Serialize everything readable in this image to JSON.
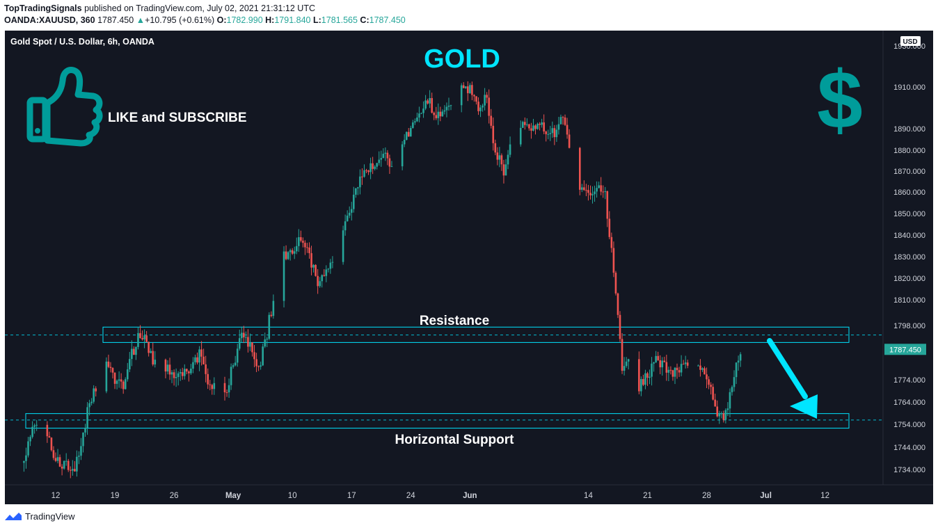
{
  "header": {
    "author": "TopTradingSignals",
    "published": "published on TradingView.com, July 02, 2021 21:31:12 UTC",
    "symbol": "OANDA:XAUUSD, 360",
    "last": "1787.450",
    "change": "+10.795 (+0.61%)",
    "o_label": "O:",
    "o": "1782.990",
    "h_label": "H:",
    "h": "1791.840",
    "l_label": "L:",
    "l": "1781.565",
    "c_label": "C:",
    "c": "1787.450"
  },
  "footer": {
    "brand": "TradingView"
  },
  "colors": {
    "up": "#26a69a",
    "down": "#ef5350",
    "zone": "#00e5ff",
    "bg": "#131722",
    "accent": "#009c9a"
  },
  "chart_data": {
    "type": "candlestick",
    "title": "Gold Spot / U.S. Dollar, 6h, OANDA",
    "currency": "USD",
    "ylim": [
      1728,
      1936
    ],
    "y_ticks": [
      "1930.000",
      "1910.000",
      "1890.000",
      "1880.000",
      "1870.000",
      "1860.000",
      "1850.000",
      "1840.000",
      "1830.000",
      "1820.000",
      "1810.000",
      "1798.000",
      "1774.000",
      "1764.000",
      "1754.000",
      "1744.000",
      "1734.000"
    ],
    "y_tick_values": [
      1930,
      1910,
      1890,
      1880,
      1870,
      1860,
      1850,
      1840,
      1830,
      1820,
      1810,
      1798,
      1774,
      1764,
      1754,
      1744,
      1734
    ],
    "x_ticks": [
      "12",
      "19",
      "26",
      "May",
      "10",
      "17",
      "24",
      "Jun",
      "14",
      "21",
      "28",
      "Jul",
      "12"
    ],
    "x_tick_dates": [
      "2021-04-12",
      "2021-04-19",
      "2021-04-26",
      "2021-05-03",
      "2021-05-10",
      "2021-05-17",
      "2021-05-24",
      "2021-05-31",
      "2021-06-14",
      "2021-06-21",
      "2021-06-28",
      "2021-07-05",
      "2021-07-12"
    ],
    "bold_ticks": [
      "May",
      "Jun",
      "Jul"
    ],
    "last_price": "1787.450",
    "last_price_value": 1787.45,
    "resistance_zone": [
      1790.5,
      1797.3
    ],
    "support_zone": [
      1752.3,
      1758.8
    ],
    "resistance_level": 1793.8,
    "support_level": 1755.9,
    "anchor_points": [
      {
        "date": "2021-04-08",
        "price": 1737
      },
      {
        "date": "2021-04-09",
        "price": 1748
      },
      {
        "date": "2021-04-10",
        "price": 1756
      },
      {
        "date": "2021-04-12",
        "price": 1740
      },
      {
        "date": "2021-04-14",
        "price": 1733
      },
      {
        "date": "2021-04-15",
        "price": 1744
      },
      {
        "date": "2021-04-16",
        "price": 1765
      },
      {
        "date": "2021-04-18",
        "price": 1780
      },
      {
        "date": "2021-04-20",
        "price": 1770
      },
      {
        "date": "2021-04-21",
        "price": 1785
      },
      {
        "date": "2021-04-22",
        "price": 1795
      },
      {
        "date": "2021-04-24",
        "price": 1780
      },
      {
        "date": "2021-04-27",
        "price": 1775
      },
      {
        "date": "2021-04-29",
        "price": 1785
      },
      {
        "date": "2021-04-30",
        "price": 1772
      },
      {
        "date": "2021-05-02",
        "price": 1768
      },
      {
        "date": "2021-05-03",
        "price": 1780
      },
      {
        "date": "2021-05-04",
        "price": 1795
      },
      {
        "date": "2021-05-05",
        "price": 1788
      },
      {
        "date": "2021-05-06",
        "price": 1778
      },
      {
        "date": "2021-05-07",
        "price": 1795
      },
      {
        "date": "2021-05-08",
        "price": 1815
      },
      {
        "date": "2021-05-09",
        "price": 1830
      },
      {
        "date": "2021-05-11",
        "price": 1838
      },
      {
        "date": "2021-05-12",
        "price": 1830
      },
      {
        "date": "2021-05-13",
        "price": 1818
      },
      {
        "date": "2021-05-15",
        "price": 1828
      },
      {
        "date": "2021-05-16",
        "price": 1845
      },
      {
        "date": "2021-05-18",
        "price": 1865
      },
      {
        "date": "2021-05-19",
        "price": 1870
      },
      {
        "date": "2021-05-21",
        "price": 1878
      },
      {
        "date": "2021-05-22",
        "price": 1872
      },
      {
        "date": "2021-05-23",
        "price": 1882
      },
      {
        "date": "2021-05-25",
        "price": 1898
      },
      {
        "date": "2021-05-26",
        "price": 1905
      },
      {
        "date": "2021-05-27",
        "price": 1895
      },
      {
        "date": "2021-05-28",
        "price": 1900
      },
      {
        "date": "2021-05-30",
        "price": 1908
      },
      {
        "date": "2021-05-31",
        "price": 1910
      },
      {
        "date": "2021-06-01",
        "price": 1900
      },
      {
        "date": "2021-06-02",
        "price": 1905
      },
      {
        "date": "2021-06-03",
        "price": 1880
      },
      {
        "date": "2021-06-04",
        "price": 1870
      },
      {
        "date": "2021-06-05",
        "price": 1885
      },
      {
        "date": "2021-06-06",
        "price": 1892
      },
      {
        "date": "2021-06-08",
        "price": 1892
      },
      {
        "date": "2021-06-10",
        "price": 1888
      },
      {
        "date": "2021-06-11",
        "price": 1895
      },
      {
        "date": "2021-06-12",
        "price": 1878
      },
      {
        "date": "2021-06-13",
        "price": 1860
      },
      {
        "date": "2021-06-15",
        "price": 1862
      },
      {
        "date": "2021-06-16",
        "price": 1858
      },
      {
        "date": "2021-06-17",
        "price": 1825
      },
      {
        "date": "2021-06-18",
        "price": 1778
      },
      {
        "date": "2021-06-19",
        "price": 1784
      },
      {
        "date": "2021-06-20",
        "price": 1770
      },
      {
        "date": "2021-06-22",
        "price": 1783
      },
      {
        "date": "2021-06-24",
        "price": 1778
      },
      {
        "date": "2021-06-26",
        "price": 1782
      },
      {
        "date": "2021-06-28",
        "price": 1777
      },
      {
        "date": "2021-06-29",
        "price": 1762
      },
      {
        "date": "2021-06-30",
        "price": 1756
      },
      {
        "date": "2021-07-01",
        "price": 1772
      },
      {
        "date": "2021-07-02",
        "price": 1787.45
      }
    ]
  },
  "overlay": {
    "title_text": "GOLD",
    "cta_text": "LIKE and SUBSCRIBE",
    "resistance_label": "Resistance",
    "support_label": "Horizontal Support",
    "dollar_glyph": "$"
  }
}
